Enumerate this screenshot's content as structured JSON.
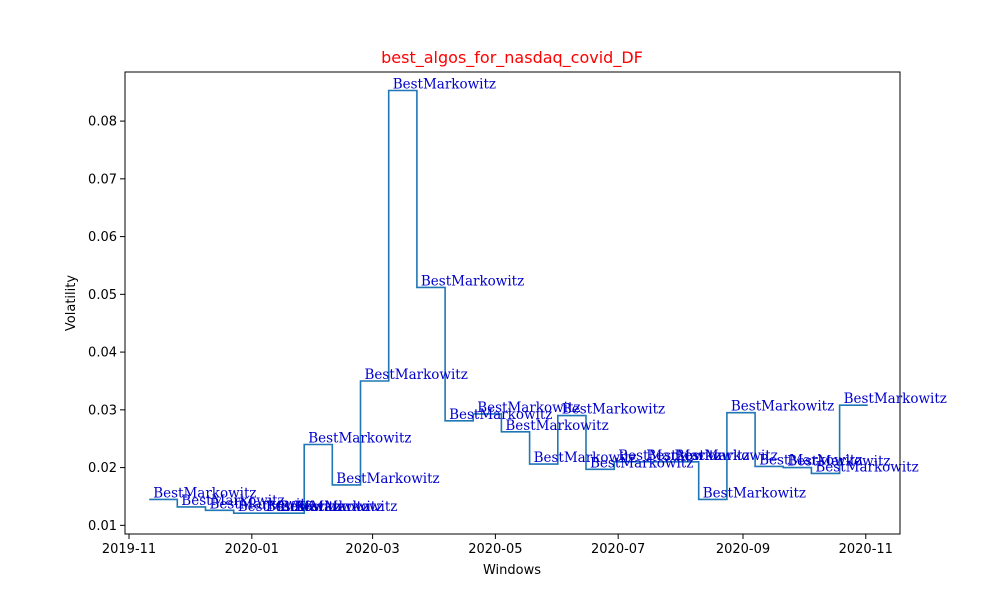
{
  "chart_data": {
    "type": "line",
    "drawstyle": "steps-post",
    "title": "best_algos_for_nasdaq_covid_DF",
    "title_color": "#ff0000",
    "xlabel": "Windows",
    "ylabel": "Volatility",
    "line_color": "#1f77b4",
    "annotation_color": "#0000cc",
    "xlim": [
      "2019-10-30",
      "2020-11-18"
    ],
    "ylim": [
      0.0085,
      0.0885
    ],
    "x_ticks": [
      {
        "date": "2019-11-01",
        "label": "2019-11"
      },
      {
        "date": "2020-01-01",
        "label": "2020-01"
      },
      {
        "date": "2020-03-01",
        "label": "2020-03"
      },
      {
        "date": "2020-05-01",
        "label": "2020-05"
      },
      {
        "date": "2020-07-01",
        "label": "2020-07"
      },
      {
        "date": "2020-09-01",
        "label": "2020-09"
      },
      {
        "date": "2020-11-01",
        "label": "2020-11"
      }
    ],
    "y_ticks": [
      {
        "value": 0.01,
        "label": "0.01"
      },
      {
        "value": 0.02,
        "label": "0.02"
      },
      {
        "value": 0.03,
        "label": "0.03"
      },
      {
        "value": 0.04,
        "label": "0.04"
      },
      {
        "value": 0.05,
        "label": "0.05"
      },
      {
        "value": 0.06,
        "label": "0.06"
      },
      {
        "value": 0.07,
        "label": "0.07"
      },
      {
        "value": 0.08,
        "label": "0.08"
      }
    ],
    "points": [
      {
        "x": "2019-11-11",
        "y": 0.0145,
        "label": "BestMarkowitz"
      },
      {
        "x": "2019-11-25",
        "y": 0.0132,
        "label": "BestMarkowitz"
      },
      {
        "x": "2019-12-09",
        "y": 0.0126,
        "label": "BestMarkowitz"
      },
      {
        "x": "2019-12-23",
        "y": 0.0121,
        "label": "BestMarkowitz"
      },
      {
        "x": "2020-01-06",
        "y": 0.0121,
        "label": "BestMarkowitz"
      },
      {
        "x": "2020-01-13",
        "y": 0.0121,
        "label": "BestMarkowitz"
      },
      {
        "x": "2020-01-20",
        "y": 0.0121,
        "label": "BestMarkowitz"
      },
      {
        "x": "2020-01-27",
        "y": 0.024,
        "label": "BestMarkowitz"
      },
      {
        "x": "2020-02-10",
        "y": 0.017,
        "label": "BestMarkowitz"
      },
      {
        "x": "2020-02-24",
        "y": 0.035,
        "label": "BestMarkowitz"
      },
      {
        "x": "2020-03-09",
        "y": 0.0853,
        "label": "BestMarkowitz"
      },
      {
        "x": "2020-03-23",
        "y": 0.0512,
        "label": "BestMarkowitz"
      },
      {
        "x": "2020-04-06",
        "y": 0.0281,
        "label": "BestMarkowitz"
      },
      {
        "x": "2020-04-20",
        "y": 0.0293,
        "label": "BestMarkowitz"
      },
      {
        "x": "2020-05-04",
        "y": 0.0262,
        "label": "BestMarkowitz"
      },
      {
        "x": "2020-05-18",
        "y": 0.0206,
        "label": "BestMarkowitz"
      },
      {
        "x": "2020-06-01",
        "y": 0.029,
        "label": "BestMarkowitz"
      },
      {
        "x": "2020-06-15",
        "y": 0.0197,
        "label": "BestMarkowitz"
      },
      {
        "x": "2020-06-29",
        "y": 0.021,
        "label": "BestMarkowitz"
      },
      {
        "x": "2020-07-13",
        "y": 0.021,
        "label": "BestMarkowitz"
      },
      {
        "x": "2020-07-27",
        "y": 0.021,
        "label": "BestMarkowitz"
      },
      {
        "x": "2020-08-10",
        "y": 0.0145,
        "label": "BestMarkowitz"
      },
      {
        "x": "2020-08-24",
        "y": 0.0295,
        "label": "BestMarkowitz"
      },
      {
        "x": "2020-09-07",
        "y": 0.0202,
        "label": "BestMarkowitz"
      },
      {
        "x": "2020-09-21",
        "y": 0.02,
        "label": "BestMarkowitz"
      },
      {
        "x": "2020-10-05",
        "y": 0.019,
        "label": "BestMarkowitz"
      },
      {
        "x": "2020-10-19",
        "y": 0.0308,
        "label": "BestMarkowitz"
      }
    ],
    "last_x": "2020-11-02",
    "grid": false,
    "legend": "none"
  }
}
